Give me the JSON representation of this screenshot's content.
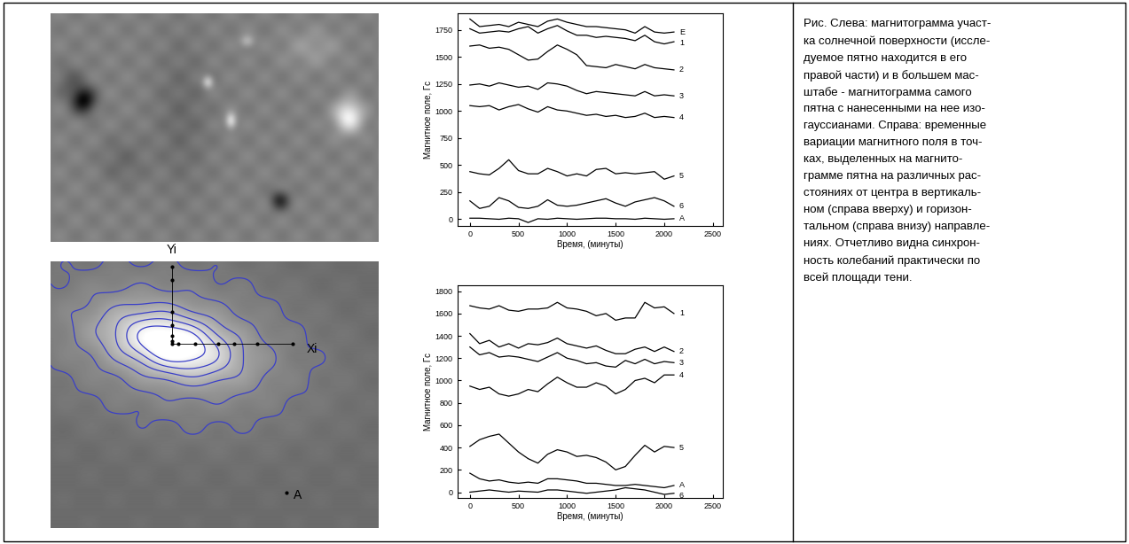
{
  "chart_data": [
    {
      "type": "line",
      "xlabel": "Время, (минуты)",
      "ylabel": "Магнитное поле, Гс",
      "x": [
        0,
        100,
        200,
        300,
        400,
        500,
        600,
        700,
        800,
        900,
        1000,
        1100,
        1200,
        1300,
        1400,
        1500,
        1600,
        1700,
        1800,
        1900,
        2000,
        2100
      ],
      "xlim": [
        -130,
        2600
      ],
      "xticks": [
        0,
        500,
        1000,
        1500,
        2000,
        2500
      ],
      "ylim": [
        -60,
        1900
      ],
      "yticks": [
        0,
        250,
        500,
        750,
        1000,
        1250,
        1500,
        1750
      ],
      "series": [
        {
          "name": "E",
          "color": "#000000",
          "values": [
            1850,
            1780,
            1790,
            1800,
            1780,
            1820,
            1800,
            1780,
            1830,
            1850,
            1820,
            1800,
            1780,
            1780,
            1770,
            1760,
            1750,
            1720,
            1780,
            1730,
            1720,
            1730
          ]
        },
        {
          "name": "1",
          "color": "#000000",
          "values": [
            1760,
            1720,
            1730,
            1740,
            1730,
            1760,
            1780,
            1720,
            1760,
            1790,
            1740,
            1700,
            1700,
            1680,
            1690,
            1680,
            1670,
            1650,
            1700,
            1640,
            1620,
            1640
          ]
        },
        {
          "name": "2",
          "color": "#000000",
          "values": [
            1600,
            1610,
            1580,
            1590,
            1570,
            1520,
            1470,
            1480,
            1550,
            1610,
            1570,
            1520,
            1420,
            1410,
            1400,
            1430,
            1410,
            1390,
            1430,
            1400,
            1390,
            1380
          ]
        },
        {
          "name": "3",
          "color": "#000000",
          "values": [
            1240,
            1250,
            1230,
            1260,
            1240,
            1220,
            1230,
            1200,
            1260,
            1250,
            1230,
            1190,
            1160,
            1180,
            1170,
            1160,
            1150,
            1140,
            1180,
            1140,
            1150,
            1140
          ]
        },
        {
          "name": "4",
          "color": "#000000",
          "values": [
            1050,
            1040,
            1050,
            1010,
            1040,
            1060,
            1020,
            990,
            1040,
            1010,
            1000,
            980,
            960,
            970,
            950,
            960,
            940,
            950,
            980,
            940,
            950,
            940
          ]
        },
        {
          "name": "5",
          "color": "#000000",
          "values": [
            440,
            420,
            410,
            470,
            550,
            450,
            420,
            420,
            470,
            440,
            400,
            420,
            400,
            460,
            470,
            420,
            430,
            420,
            430,
            440,
            370,
            400
          ]
        },
        {
          "name": "6",
          "color": "#000000",
          "values": [
            170,
            100,
            120,
            200,
            170,
            110,
            100,
            120,
            180,
            130,
            120,
            130,
            150,
            170,
            190,
            150,
            120,
            160,
            180,
            200,
            170,
            120
          ]
        },
        {
          "name": "A",
          "color": "#000000",
          "values": [
            10,
            10,
            5,
            0,
            10,
            5,
            -30,
            5,
            0,
            10,
            5,
            0,
            5,
            10,
            10,
            5,
            5,
            0,
            10,
            5,
            0,
            5
          ]
        }
      ]
    },
    {
      "type": "line",
      "xlabel": "Время, (минуты)",
      "ylabel": "Магнитное поле, Гс",
      "x": [
        0,
        100,
        200,
        300,
        400,
        500,
        600,
        700,
        800,
        900,
        1000,
        1100,
        1200,
        1300,
        1400,
        1500,
        1600,
        1700,
        1800,
        1900,
        2000,
        2100
      ],
      "xlim": [
        -130,
        2600
      ],
      "xticks": [
        0,
        500,
        1000,
        1500,
        2000,
        2500
      ],
      "ylim": [
        -50,
        1850
      ],
      "yticks": [
        0,
        200,
        400,
        600,
        800,
        1000,
        1200,
        1400,
        1600,
        1800
      ],
      "series": [
        {
          "name": "1",
          "color": "#000000",
          "values": [
            1670,
            1650,
            1640,
            1670,
            1630,
            1620,
            1640,
            1640,
            1650,
            1700,
            1650,
            1640,
            1620,
            1580,
            1600,
            1540,
            1560,
            1560,
            1700,
            1650,
            1660,
            1600
          ]
        },
        {
          "name": "2",
          "color": "#000000",
          "values": [
            1420,
            1330,
            1360,
            1300,
            1330,
            1290,
            1330,
            1320,
            1340,
            1380,
            1330,
            1310,
            1290,
            1310,
            1270,
            1240,
            1240,
            1280,
            1300,
            1260,
            1300,
            1260
          ]
        },
        {
          "name": "3",
          "color": "#000000",
          "values": [
            1300,
            1230,
            1250,
            1210,
            1220,
            1210,
            1190,
            1170,
            1210,
            1250,
            1200,
            1180,
            1150,
            1160,
            1130,
            1120,
            1180,
            1150,
            1190,
            1150,
            1170,
            1160
          ]
        },
        {
          "name": "4",
          "color": "#000000",
          "values": [
            950,
            920,
            940,
            880,
            860,
            880,
            920,
            900,
            970,
            1030,
            980,
            940,
            940,
            980,
            950,
            880,
            920,
            1000,
            1020,
            980,
            1050,
            1050
          ]
        },
        {
          "name": "5",
          "color": "#000000",
          "values": [
            410,
            470,
            500,
            520,
            440,
            360,
            300,
            260,
            340,
            380,
            360,
            320,
            330,
            310,
            270,
            200,
            230,
            330,
            420,
            360,
            410,
            400
          ]
        },
        {
          "name": "A",
          "color": "#000000",
          "values": [
            170,
            120,
            100,
            110,
            90,
            80,
            90,
            80,
            120,
            120,
            110,
            100,
            80,
            80,
            70,
            60,
            60,
            70,
            60,
            50,
            40,
            60
          ]
        },
        {
          "name": "6",
          "color": "#000000",
          "values": [
            0,
            10,
            20,
            10,
            0,
            10,
            5,
            0,
            20,
            20,
            10,
            0,
            -10,
            0,
            10,
            20,
            40,
            30,
            20,
            0,
            -20,
            -10
          ]
        }
      ]
    }
  ],
  "magnetogram": {
    "point_labels": {
      "vertical": "Yi",
      "horizontal": "Xi",
      "reference": "A"
    }
  },
  "caption": {
    "lines": [
      "Рис. Слева: магнитограмма участ-",
      "ка солнечной поверхности (иссле-",
      "дуемое пятно находится в его",
      "правой части) и в большем мас-",
      "штабе - магнитограмма самого",
      "пятна с нанесенными на нее изо-",
      "гауссианами. Справа: временные",
      "вариации магнитного поля в точ-",
      "ках, выделенных на магнито-",
      "грамме пятна на различных рас-",
      "стояниях от центра в вертикаль-",
      "ном (справа вверху) и горизон-",
      "тальном (справа внизу) направле-",
      "ниях. Отчетливо видна синхрон-",
      "ность колебаний практически по",
      "всей площади тени."
    ]
  }
}
